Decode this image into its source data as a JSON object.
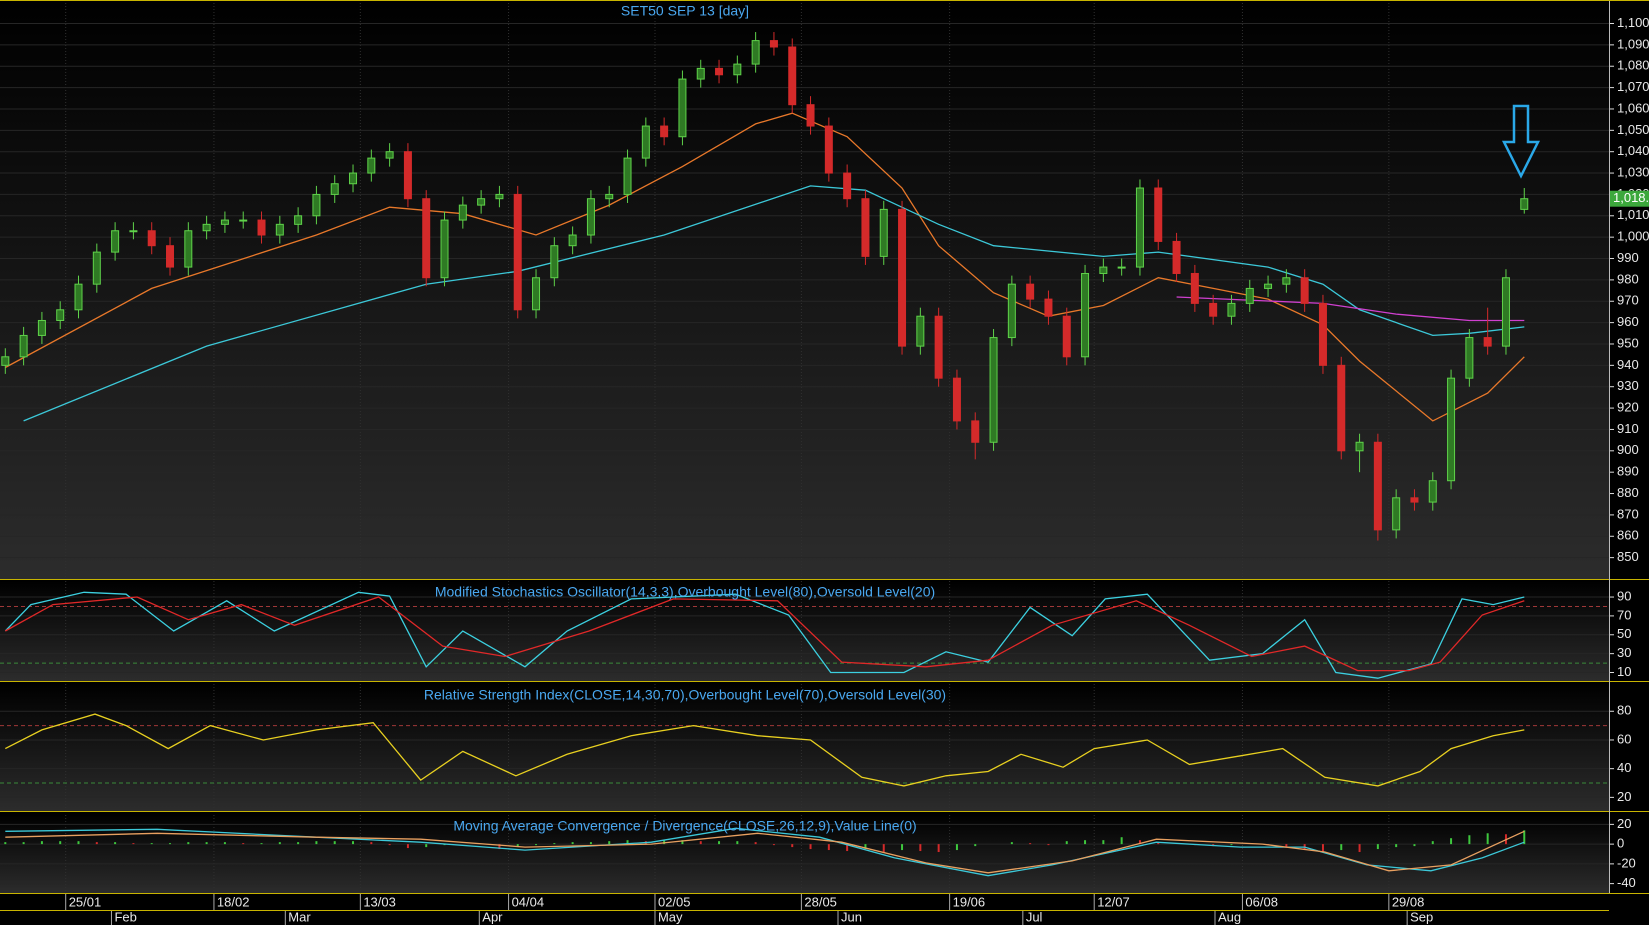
{
  "chart_data": [
    {
      "type": "candlestick",
      "title": "SET50 SEP 13  [day]",
      "xlim": [
        -0.29,
        87.63
      ],
      "ylim": [
        840,
        1111
      ],
      "yticks": [
        850,
        860,
        870,
        880,
        890,
        900,
        910,
        920,
        930,
        940,
        950,
        960,
        970,
        980,
        990,
        {
          "value": 1000,
          "label": "1,000"
        },
        {
          "value": 1010,
          "label": "1,010"
        },
        {
          "value": 1020,
          "label": "1,020"
        },
        {
          "value": 1030,
          "label": "1,030"
        },
        {
          "value": 1040,
          "label": "1,040"
        },
        {
          "value": 1050,
          "label": "1,050"
        },
        {
          "value": 1060,
          "label": "1,060"
        },
        {
          "value": 1070,
          "label": "1,070"
        },
        {
          "value": 1080,
          "label": "1,080"
        },
        {
          "value": 1090,
          "label": "1,090"
        },
        {
          "value": 1100,
          "label": "1,100"
        }
      ],
      "up_color": "#5fd24a",
      "down_color": "#d42a2a",
      "open": [
        940,
        944,
        954,
        961,
        966,
        978,
        993,
        1003,
        1003,
        996,
        986,
        1003,
        1006,
        1008,
        1008,
        1001,
        1006,
        1010,
        1020,
        1025,
        1030,
        1037,
        1040,
        1018,
        981,
        1008,
        1015,
        1018,
        1020,
        966,
        981,
        996,
        1001,
        1018,
        1020,
        1037,
        1052,
        1047,
        1074,
        1079,
        1076,
        1081,
        1092,
        1089,
        1062,
        1052,
        1030,
        1018,
        991,
        1013,
        949,
        963,
        934,
        914,
        904,
        953,
        978,
        971,
        963,
        944,
        983,
        986,
        986,
        1023,
        998,
        983,
        969,
        963,
        969,
        976,
        978,
        981,
        969,
        940,
        900,
        904,
        863,
        878,
        876,
        886,
        934,
        953,
        949,
        1013
      ],
      "high": [
        948,
        958,
        965,
        970,
        982,
        997,
        1007,
        1007,
        1007,
        1000,
        1007,
        1010,
        1012,
        1012,
        1012,
        1010,
        1014,
        1024,
        1029,
        1034,
        1041,
        1044,
        1044,
        1022,
        1012,
        1019,
        1022,
        1024,
        1024,
        985,
        1000,
        1005,
        1022,
        1024,
        1041,
        1056,
        1056,
        1078,
        1083,
        1083,
        1085,
        1096,
        1096,
        1093,
        1066,
        1056,
        1034,
        1022,
        1017,
        1017,
        967,
        967,
        938,
        918,
        957,
        982,
        982,
        975,
        967,
        987,
        990,
        990,
        1027,
        1027,
        1002,
        987,
        973,
        973,
        980,
        982,
        985,
        985,
        973,
        944,
        908,
        908,
        882,
        882,
        890,
        938,
        957,
        967,
        985,
        1023
      ],
      "low": [
        936,
        940,
        950,
        957,
        962,
        974,
        989,
        999,
        992,
        982,
        982,
        999,
        1002,
        1004,
        997,
        997,
        1002,
        1006,
        1016,
        1021,
        1026,
        1033,
        1014,
        977,
        977,
        1004,
        1011,
        1014,
        962,
        962,
        977,
        992,
        997,
        1014,
        1016,
        1033,
        1043,
        1043,
        1070,
        1072,
        1072,
        1077,
        1085,
        1058,
        1048,
        1026,
        1014,
        987,
        987,
        945,
        945,
        930,
        910,
        896,
        900,
        949,
        967,
        959,
        940,
        940,
        979,
        982,
        982,
        994,
        979,
        965,
        959,
        959,
        965,
        972,
        974,
        965,
        936,
        896,
        890,
        858,
        859,
        872,
        872,
        882,
        930,
        945,
        945,
        1011
      ],
      "close": [
        944,
        954,
        961,
        966,
        978,
        993,
        1003,
        1003,
        996,
        986,
        1003,
        1006,
        1008,
        1008,
        1001,
        1006,
        1010,
        1020,
        1025,
        1030,
        1037,
        1040,
        1018,
        981,
        1008,
        1015,
        1018,
        1020,
        966,
        981,
        996,
        1001,
        1018,
        1020,
        1037,
        1052,
        1047,
        1074,
        1079,
        1076,
        1081,
        1092,
        1089,
        1062,
        1052,
        1030,
        1018,
        991,
        1013,
        949,
        963,
        934,
        914,
        904,
        953,
        978,
        971,
        963,
        944,
        983,
        986,
        986,
        1023,
        998,
        983,
        969,
        963,
        969,
        976,
        978,
        981,
        969,
        940,
        900,
        904,
        863,
        878,
        876,
        886,
        934,
        953,
        949,
        981,
        1018
      ],
      "lines": [
        {
          "color": "#e8782a",
          "x": [
            0,
            8,
            17,
            21,
            25,
            29,
            33,
            37,
            41,
            43,
            46,
            49,
            51,
            54,
            57,
            60,
            63,
            66,
            69,
            72,
            74,
            78,
            81,
            83
          ],
          "values": [
            939,
            976,
            1001,
            1014,
            1011,
            1001,
            1015,
            1033,
            1053,
            1058,
            1047,
            1023,
            996,
            974,
            963,
            968,
            981,
            976,
            971,
            959,
            942,
            914,
            927,
            944
          ]
        },
        {
          "color": "#3cc8d8",
          "x": [
            1,
            11,
            23,
            28,
            36,
            44,
            47,
            51,
            54,
            60,
            63,
            69,
            72,
            74,
            78,
            80,
            83
          ],
          "values": [
            914,
            949,
            978,
            984,
            1001,
            1024,
            1022,
            1006,
            996,
            991,
            993,
            986,
            978,
            966,
            954,
            955,
            958
          ]
        },
        {
          "color": "#d040d0",
          "x": [
            64,
            72,
            76,
            80,
            83
          ],
          "values": [
            972,
            969,
            964,
            961,
            961
          ]
        }
      ],
      "last_price": {
        "value": 1018,
        "label": "1,018."
      }
    },
    {
      "type": "line",
      "title": "Modified Stochastics Oscillator(14,3,3),Overbought Level(80),Oversold Level(20)",
      "xlim": [
        -0.29,
        87.63
      ],
      "ylim": [
        1,
        107
      ],
      "yticks": [
        10,
        30,
        50,
        70,
        90
      ],
      "levels": [
        {
          "value": 80,
          "color": "#a03838"
        },
        {
          "value": 20,
          "color": "#3a8a3a"
        }
      ],
      "lines": [
        {
          "color": "#3cd0e0",
          "x": [
            0,
            1.4,
            4.3,
            6.6,
            9.2,
            12.1,
            14.7,
            19.3,
            21,
            23,
            25,
            28.4,
            30.7,
            34.2,
            39.9,
            42.8,
            45.1,
            49.1,
            51.4,
            53.7,
            56,
            58.3,
            60.1,
            62.4,
            65.8,
            68.7,
            71,
            72.7,
            75,
            77.9,
            79.6,
            81.3,
            83
          ],
          "values": [
            54,
            82,
            95,
            93,
            54,
            86,
            54,
            95,
            91,
            16,
            54,
            16,
            54,
            88,
            93,
            71,
            10,
            10,
            32,
            21,
            79,
            49,
            88,
            93,
            23,
            30,
            66,
            10,
            4,
            19,
            88,
            82,
            90
          ]
        },
        {
          "color": "#e02828",
          "x": [
            0,
            2.6,
            7.2,
            10,
            12.9,
            15.8,
            20.4,
            23.9,
            27.3,
            31.9,
            36.5,
            42.2,
            45.7,
            50.3,
            53.7,
            57.2,
            61.8,
            64.7,
            68.1,
            71,
            73.9,
            76.7,
            78.4,
            80.7,
            83
          ],
          "values": [
            54,
            82,
            90,
            66,
            82,
            60,
            90,
            38,
            27,
            54,
            88,
            86,
            21,
            16,
            23,
            60,
            86,
            60,
            27,
            38,
            12,
            12,
            21,
            71,
            86
          ]
        }
      ]
    },
    {
      "type": "line",
      "title": "Relative Strength Index(CLOSE,14,30,70),Overbought Level(70),Oversold Level(30)",
      "xlim": [
        -0.29,
        87.63
      ],
      "ylim": [
        10.5,
        99
      ],
      "yticks": [
        20,
        40,
        60,
        80
      ],
      "levels": [
        {
          "value": 70,
          "color": "#a03838"
        },
        {
          "value": 30,
          "color": "#3a8a3a"
        }
      ],
      "lines": [
        {
          "color": "#e8d020",
          "x": [
            0,
            2,
            4.9,
            6.6,
            8.9,
            11.2,
            14.1,
            17,
            20.1,
            22.7,
            25,
            27.9,
            30.7,
            34.2,
            37.6,
            41.1,
            44,
            46.8,
            49.1,
            51.4,
            53.7,
            55.5,
            57.8,
            59.5,
            62.4,
            64.7,
            67.5,
            69.8,
            72.1,
            75,
            77.3,
            79,
            81.3,
            83
          ],
          "values": [
            54,
            67,
            78,
            70,
            54,
            70,
            60,
            67,
            72,
            32,
            52,
            35,
            50,
            63,
            70,
            63,
            60,
            34,
            28,
            35,
            38,
            50,
            41,
            54,
            60,
            43,
            49,
            54,
            34,
            28,
            38,
            54,
            63,
            67
          ]
        }
      ]
    },
    {
      "type": "macd",
      "title": "Moving Average Convergence / Divergence(CLOSE,26,12,9),Value Line(0)",
      "xlim": [
        -0.29,
        87.63
      ],
      "ylim": [
        -49.5,
        29.5
      ],
      "yticks": [
        -40,
        -20,
        0,
        20
      ],
      "up_color": "#3ec83e",
      "down_color": "#d42a2a",
      "histogram": [
        2,
        2,
        3,
        3,
        3,
        2,
        2,
        1,
        1,
        1,
        2,
        2,
        2,
        1,
        1,
        2,
        2,
        3,
        3,
        3,
        2,
        -1,
        -4,
        -3,
        -1,
        0,
        0,
        -5,
        -3,
        -1,
        1,
        2,
        2,
        3,
        4,
        3,
        4,
        4,
        3,
        3,
        3,
        2,
        -1,
        -3,
        -5,
        -6,
        -7,
        -5,
        -8,
        -6,
        -7,
        -8,
        -6,
        -2,
        0,
        2,
        1,
        -1,
        3,
        4,
        4,
        7,
        4,
        2,
        0,
        -1,
        -2,
        -1,
        0,
        -1,
        -3,
        -6,
        -8,
        -6,
        -8,
        -5,
        -3,
        -2,
        3,
        6,
        9,
        11,
        10,
        14
      ],
      "lines": [
        {
          "color": "#3cc8d8",
          "x": [
            0,
            8.3,
            17,
            22.7,
            28.4,
            35.3,
            39.9,
            44.5,
            48.6,
            53.7,
            57.2,
            62.9,
            67.5,
            71,
            74.4,
            77.9,
            80.7,
            83
          ],
          "values": [
            13,
            15,
            7,
            2,
            -6,
            2,
            16,
            7,
            -14,
            -32,
            -21,
            2,
            -3,
            -3,
            -21,
            -27,
            -14,
            2
          ]
        },
        {
          "color": "#e8a060",
          "x": [
            0,
            8.3,
            17,
            22.7,
            28.4,
            35.3,
            41.1,
            45.7,
            50.3,
            53.7,
            58.3,
            62.9,
            68.7,
            72.1,
            75.6,
            79,
            83
          ],
          "values": [
            7,
            11,
            7,
            5,
            -3,
            0,
            11,
            2,
            -19,
            -29,
            -17,
            5,
            0,
            -8,
            -27,
            -21,
            13
          ]
        }
      ],
      "xticks": [
        {
          "value": 3.3,
          "label": "25/01"
        },
        {
          "value": 11.4,
          "label": "18/02"
        },
        {
          "value": 19.4,
          "label": "13/03"
        },
        {
          "value": 27.5,
          "label": "04/04"
        },
        {
          "value": 35.5,
          "label": "02/05"
        },
        {
          "value": 43.5,
          "label": "28/05"
        },
        {
          "value": 51.6,
          "label": "19/06"
        },
        {
          "value": 59.5,
          "label": "12/07"
        },
        {
          "value": 67.6,
          "label": "06/08"
        },
        {
          "value": 75.6,
          "label": "29/08"
        }
      ],
      "month_ticks": [
        {
          "value": 5.8,
          "label": "Feb"
        },
        {
          "value": 15.3,
          "label": "Mar"
        },
        {
          "value": 25.9,
          "label": "Apr"
        },
        {
          "value": 35.5,
          "label": "May"
        },
        {
          "value": 45.5,
          "label": "Jun"
        },
        {
          "value": 55.6,
          "label": "Jul"
        },
        {
          "value": 66.1,
          "label": "Aug"
        },
        {
          "value": 76.6,
          "label": "Sep"
        }
      ]
    }
  ]
}
